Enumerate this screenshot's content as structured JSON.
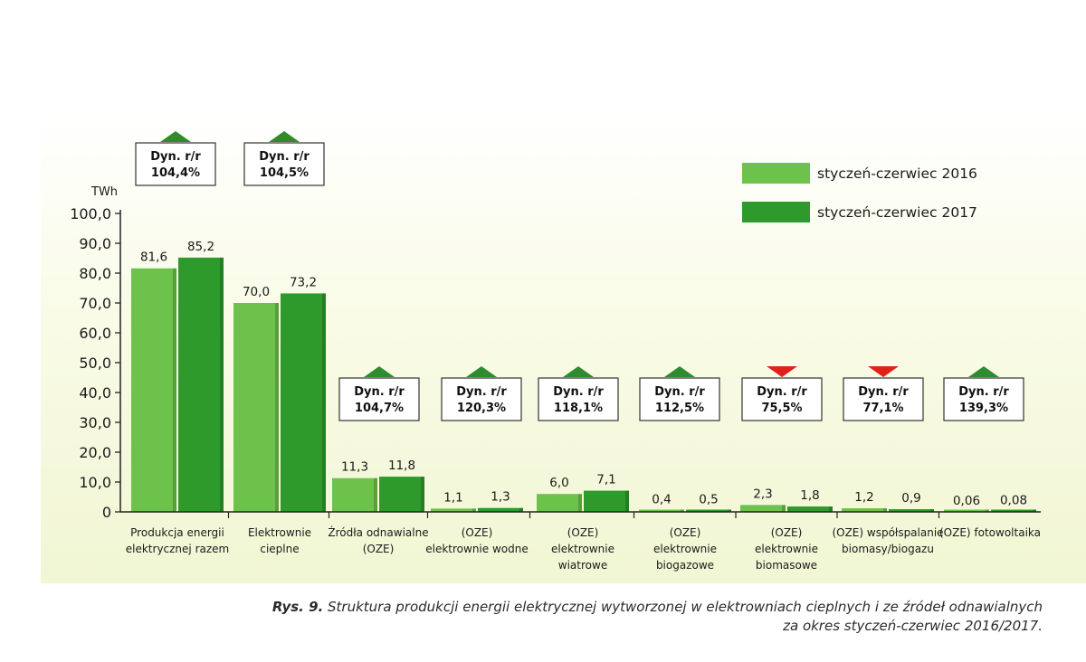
{
  "chart_data": {
    "type": "bar",
    "unit": "TWh",
    "ylim": [
      0,
      100
    ],
    "yticks": [
      "100,0",
      "90,0",
      "80,0",
      "70,0",
      "60,0",
      "50,0",
      "40,0",
      "30,0",
      "20,0",
      "10,0",
      "0"
    ],
    "categories": [
      [
        "Produkcja energii",
        "elektrycznej razem"
      ],
      [
        "Elektrownie",
        "cieplne"
      ],
      [
        "Źródła odnawialne",
        "(OZE)"
      ],
      [
        "(OZE)",
        "elektrownie wodne"
      ],
      [
        "(OZE)",
        "elektrownie",
        "wiatrowe"
      ],
      [
        "(OZE)",
        "elektrownie",
        "biogazowe"
      ],
      [
        "(OZE)",
        "elektrownie",
        "biomasowe"
      ],
      [
        "(OZE) współspalanie",
        "biomasy/biogazu"
      ],
      [
        "(OZE) fotowoltaika"
      ]
    ],
    "series": [
      {
        "name": "styczeń-czerwiec 2016",
        "color": "#6cc24a",
        "values": [
          81.6,
          70.0,
          11.3,
          1.1,
          6.0,
          0.4,
          2.3,
          1.2,
          0.06
        ],
        "labels": [
          "81,6",
          "70,0",
          "11,3",
          "1,1",
          "6,0",
          "0,4",
          "2,3",
          "1,2",
          "0,06"
        ]
      },
      {
        "name": "styczeń-czerwiec 2017",
        "color": "#2e9a2b",
        "values": [
          85.2,
          73.2,
          11.8,
          1.3,
          7.1,
          0.5,
          1.8,
          0.9,
          0.08
        ],
        "labels": [
          "85,2",
          "73,2",
          "11,8",
          "1,3",
          "7,1",
          "0,5",
          "1,8",
          "0,9",
          "0,08"
        ]
      }
    ],
    "dynamics": [
      {
        "label": "Dyn. r/r",
        "value": "104,4%",
        "direction": "up"
      },
      {
        "label": "Dyn. r/r",
        "value": "104,5%",
        "direction": "up"
      },
      {
        "label": "Dyn. r/r",
        "value": "104,7%",
        "direction": "up"
      },
      {
        "label": "Dyn. r/r",
        "value": "120,3%",
        "direction": "up"
      },
      {
        "label": "Dyn. r/r",
        "value": "118,1%",
        "direction": "up"
      },
      {
        "label": "Dyn. r/r",
        "value": "112,5%",
        "direction": "up"
      },
      {
        "label": "Dyn. r/r",
        "value": "75,5%",
        "direction": "down"
      },
      {
        "label": "Dyn. r/r",
        "value": "77,1%",
        "direction": "down"
      },
      {
        "label": "Dyn. r/r",
        "value": "139,3%",
        "direction": "up"
      }
    ],
    "legend_position": "top-right",
    "grid": false,
    "colors": {
      "up": "#2e8b2e",
      "down": "#e0201b"
    }
  },
  "caption": {
    "prefix": "Rys. 9.",
    "line1": "Struktura produkcji energii elektrycznej wytworzonej w elektrowniach cieplnych i ze źródeł odnawialnych",
    "line2": "za okres styczeń-czerwiec 2016/2017."
  }
}
